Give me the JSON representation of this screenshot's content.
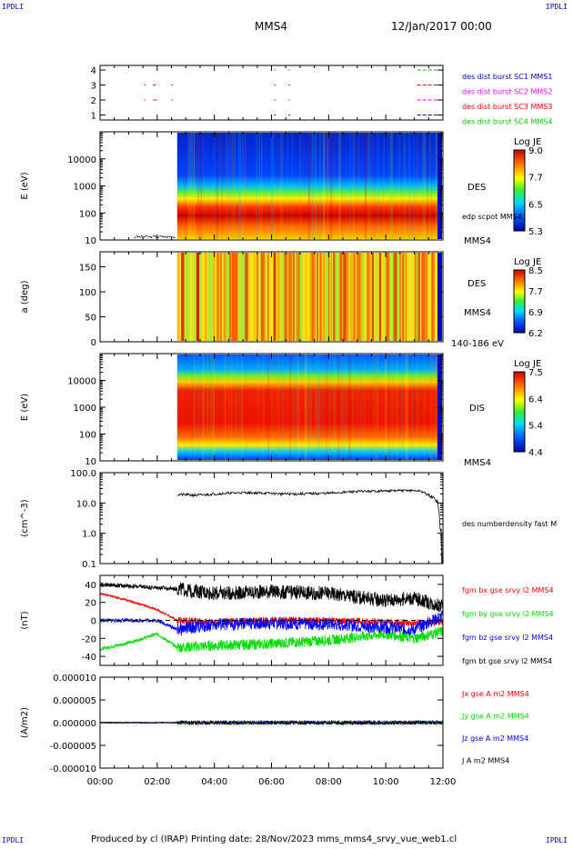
{
  "corners": {
    "tl": "IPDLI",
    "tr": "IPDLI",
    "bl": "IPDLI",
    "br": "IPDLI"
  },
  "header": {
    "spacecraft": "MMS4",
    "date": "12/Jan/2017 00:00"
  },
  "footer": "Produced by cl (IRAP)   Printing date: 28/Nov/2023   mms_mms4_srvy_vue_web1.cl",
  "x_axis": {
    "ticks": [
      "00:00",
      "02:00",
      "04:00",
      "06:00",
      "08:00",
      "10:00",
      "12:00"
    ],
    "range_hours": [
      0,
      12
    ]
  },
  "colors": {
    "red": "#ff0000",
    "green": "#00dd00",
    "blue": "#0000ff",
    "black": "#000000",
    "magenta": "#ff00ff",
    "navy": "#000099"
  },
  "chart_data": [
    {
      "type": "scatter",
      "panel": "burst availability",
      "yticks": [
        "1",
        "2",
        "3",
        "4"
      ],
      "legend": [
        {
          "label": "des dist burst SC1 MMS1",
          "color": "#0000cc"
        },
        {
          "label": "des dist burst SC2 MMS2",
          "color": "#ff00ff"
        },
        {
          "label": "des dist burst SC3 MMS3",
          "color": "#ff0000"
        },
        {
          "label": "des dist burst SC4 MMS4",
          "color": "#00cc00"
        }
      ],
      "segments": [
        {
          "row": 4,
          "color": "#00cc00",
          "ranges": [
            [
              6.1,
              6.15
            ],
            [
              6.6,
              6.65
            ],
            [
              11.1,
              11.9
            ]
          ]
        },
        {
          "row": 3,
          "color": "#ff0000",
          "ranges": [
            [
              1.55,
              1.6
            ],
            [
              1.85,
              1.95
            ],
            [
              2.5,
              2.55
            ],
            [
              6.1,
              6.15
            ],
            [
              6.6,
              6.65
            ],
            [
              11.1,
              11.9
            ]
          ]
        },
        {
          "row": 2,
          "color": "#ff00ff",
          "ranges": [
            [
              1.55,
              1.6
            ],
            [
              1.85,
              2.0
            ],
            [
              2.5,
              2.55
            ],
            [
              6.1,
              6.15
            ],
            [
              6.6,
              6.65
            ],
            [
              11.1,
              11.9
            ]
          ]
        },
        {
          "row": 1,
          "color": "#000099",
          "ranges": [
            [
              6.1,
              6.15
            ],
            [
              6.6,
              6.65
            ],
            [
              11.1,
              11.9
            ]
          ]
        }
      ]
    },
    {
      "type": "heatmap",
      "panel": "DES energy",
      "ylabel": "E (eV)",
      "yticks": [
        "10",
        "100",
        "1000",
        "10000"
      ],
      "label": "DES",
      "sublabel": "edp scpot MMS4",
      "sublabel2": "MMS4",
      "colorbar": {
        "title": "Log JE",
        "ticks": [
          "9.0",
          "7.7",
          "6.5",
          "5.3"
        ]
      },
      "data_start_hour": 2.7
    },
    {
      "type": "heatmap",
      "panel": "DES pitch angle",
      "ylabel": "a (deg)",
      "yticks": [
        "0",
        "50",
        "100",
        "150"
      ],
      "label": "DES",
      "sublabel": "MMS4",
      "sublabel2": "140-186 eV",
      "colorbar": {
        "title": "Log JE",
        "ticks": [
          "8.5",
          "7.7",
          "6.9",
          "6.2"
        ]
      },
      "data_start_hour": 2.7
    },
    {
      "type": "heatmap",
      "panel": "DIS energy",
      "ylabel": "E (eV)",
      "yticks": [
        "10",
        "100",
        "1000",
        "10000"
      ],
      "label": "DIS",
      "sublabel": "MMS4",
      "colorbar": {
        "title": "Log JE",
        "ticks": [
          "7.5",
          "6.4",
          "5.4",
          "4.4"
        ]
      },
      "data_start_hour": 2.7
    },
    {
      "type": "line",
      "panel": "density",
      "ylabel": "(cm^-3)",
      "yticks": [
        "0.1",
        "1.0",
        "10.0",
        "100.0"
      ],
      "ylim": [
        0.1,
        100
      ],
      "log": true,
      "series": [
        {
          "name": "des numberdensity fast M",
          "color": "#000000",
          "x": [
            2.7,
            3.5,
            4.0,
            5.0,
            6.0,
            6.3,
            7.0,
            8.0,
            9.0,
            10.0,
            10.8,
            11.2,
            11.5,
            11.8,
            11.9,
            12.0
          ],
          "y": [
            19,
            18,
            20,
            22,
            21,
            20,
            20,
            21,
            24,
            25,
            26,
            25,
            18,
            12,
            0.6,
            0.5
          ]
        }
      ]
    },
    {
      "type": "line",
      "panel": "magnetic field",
      "ylabel": "(nT)",
      "yticks": [
        "-40",
        "-20",
        "0",
        "20",
        "40"
      ],
      "ylim": [
        -50,
        50
      ],
      "series": [
        {
          "name": "fgm bx gse srvy l2 MMS4",
          "color": "#ff0000",
          "x": [
            0,
            1,
            2,
            2.7,
            4,
            6,
            8,
            10,
            11,
            12
          ],
          "y": [
            30,
            22,
            12,
            0,
            -2,
            0,
            0,
            -2,
            -3,
            -2
          ]
        },
        {
          "name": "fgm by gse srvy l2 MMS4",
          "color": "#00dd00",
          "x": [
            0,
            1,
            2,
            2.7,
            4,
            6,
            8,
            10,
            11,
            12
          ],
          "y": [
            -32,
            -25,
            -15,
            -30,
            -28,
            -26,
            -22,
            -15,
            -20,
            -12
          ]
        },
        {
          "name": "fgm bz gse srvy l2 MMS4",
          "color": "#0000ff",
          "x": [
            0,
            1,
            2,
            2.7,
            4,
            6,
            8,
            10,
            11,
            12
          ],
          "y": [
            0,
            0,
            0,
            -10,
            -5,
            -3,
            -4,
            -8,
            -10,
            5
          ]
        },
        {
          "name": "fgm bt gse srvy l2 MMS4",
          "color": "#000000",
          "x": [
            0,
            2.7,
            4,
            6,
            8,
            10,
            11,
            12
          ],
          "y": [
            40,
            35,
            30,
            32,
            30,
            22,
            25,
            15
          ]
        }
      ]
    },
    {
      "type": "line",
      "panel": "current density",
      "ylabel": "(A/m2)",
      "yticks": [
        "-0.000010",
        "-0.000005",
        "0.000000",
        "0.000005",
        "0.000010"
      ],
      "ylim": [
        -1e-05,
        1e-05
      ],
      "series": [
        {
          "name": "Jx gse A m2 MMS4",
          "color": "#ff0000"
        },
        {
          "name": "Jy gse A m2 MMS4",
          "color": "#00dd00"
        },
        {
          "name": "Jz gse A m2 MMS4",
          "color": "#0000ff"
        },
        {
          "name": "J A m2 MMS4",
          "color": "#000000"
        }
      ]
    }
  ]
}
